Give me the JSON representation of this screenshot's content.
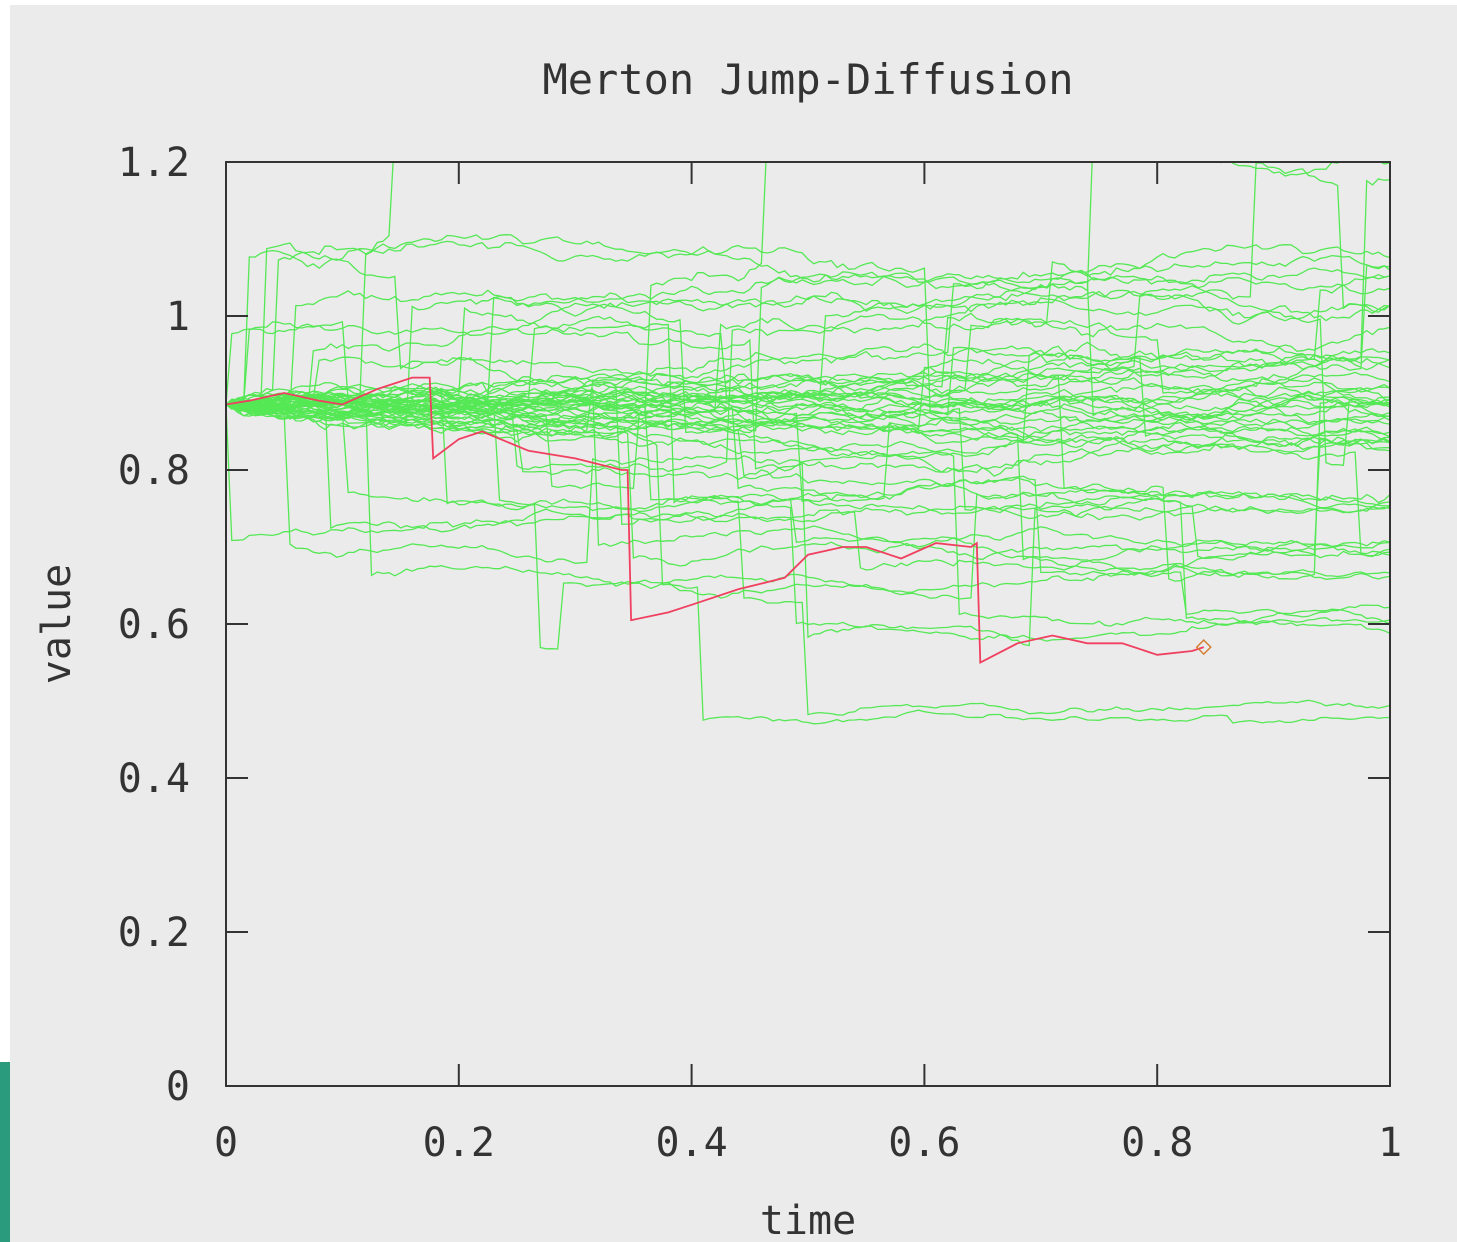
{
  "chart_data": {
    "type": "line",
    "title": "Merton Jump-Diffusion",
    "xlabel": "time",
    "ylabel": "value",
    "xlim": [
      0,
      1
    ],
    "ylim": [
      0,
      1.2
    ],
    "x_ticks": [
      "0",
      "0.2",
      "0.4",
      "0.6",
      "0.8",
      "1"
    ],
    "y_ticks": [
      "0",
      "0.2",
      "0.4",
      "0.6",
      "0.8",
      "1",
      "1.2"
    ],
    "grid": false,
    "legend": "none",
    "colors": {
      "background": "#ebebeb",
      "paths": "#55e855",
      "highlight": "#f04060",
      "axis": "#333333",
      "accent_strip": "#2a9b7c"
    },
    "simulation": {
      "path_count": 60,
      "start_value": 0.885,
      "step_count": 200,
      "final_time": 1
    },
    "series": [
      {
        "points": [
          [
            0,
            0.885
          ],
          [
            0.02,
            0.89
          ],
          [
            0.05,
            0.9
          ],
          [
            0.08,
            0.89
          ],
          [
            0.1,
            0.885
          ],
          [
            0.13,
            0.905
          ],
          [
            0.16,
            0.92
          ],
          [
            0.175,
            0.92
          ],
          [
            0.178,
            0.815
          ],
          [
            0.2,
            0.84
          ],
          [
            0.22,
            0.85
          ],
          [
            0.26,
            0.825
          ],
          [
            0.3,
            0.815
          ],
          [
            0.34,
            0.8
          ],
          [
            0.345,
            0.8
          ],
          [
            0.348,
            0.605
          ],
          [
            0.38,
            0.615
          ],
          [
            0.4,
            0.625
          ],
          [
            0.44,
            0.645
          ],
          [
            0.48,
            0.66
          ],
          [
            0.5,
            0.69
          ],
          [
            0.53,
            0.7
          ],
          [
            0.55,
            0.7
          ],
          [
            0.58,
            0.685
          ],
          [
            0.61,
            0.705
          ],
          [
            0.64,
            0.7
          ],
          [
            0.645,
            0.705
          ],
          [
            0.648,
            0.55
          ],
          [
            0.68,
            0.575
          ],
          [
            0.71,
            0.585
          ],
          [
            0.74,
            0.575
          ],
          [
            0.77,
            0.575
          ],
          [
            0.8,
            0.56
          ],
          [
            0.83,
            0.565
          ],
          [
            0.84,
            0.57
          ]
        ]
      }
    ]
  }
}
